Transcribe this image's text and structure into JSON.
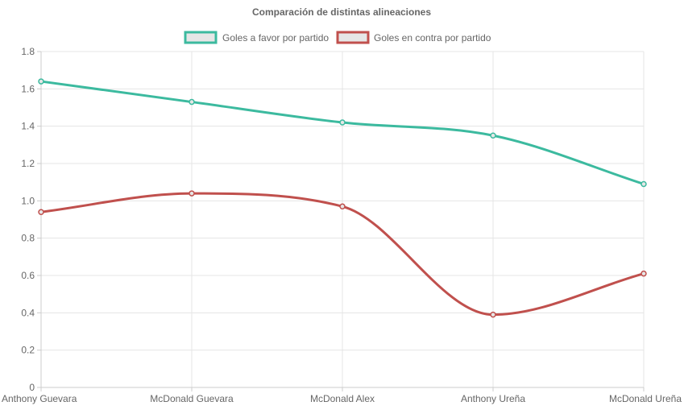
{
  "chart_data": {
    "type": "line",
    "title": "Comparación de distintas alineaciones",
    "categories": [
      "Anthony Guevara",
      "McDonald Guevara",
      "McDonald Alex",
      "Anthony Ureña",
      "McDonald Ureña"
    ],
    "series": [
      {
        "name": "Goles a favor por partido",
        "color": "#3cba9f",
        "values": [
          1.64,
          1.53,
          1.42,
          1.35,
          1.09
        ]
      },
      {
        "name": "Goles en contra por partido",
        "color": "#c0504d",
        "values": [
          0.94,
          1.04,
          0.97,
          0.39,
          0.61
        ]
      }
    ],
    "ylim": [
      0,
      1.8
    ],
    "yticks": [
      "0",
      "0.2",
      "0.4",
      "0.6",
      "0.8",
      "1.0",
      "1.2",
      "1.4",
      "1.6",
      "1.8"
    ],
    "grid": true,
    "legend_position": "top"
  }
}
